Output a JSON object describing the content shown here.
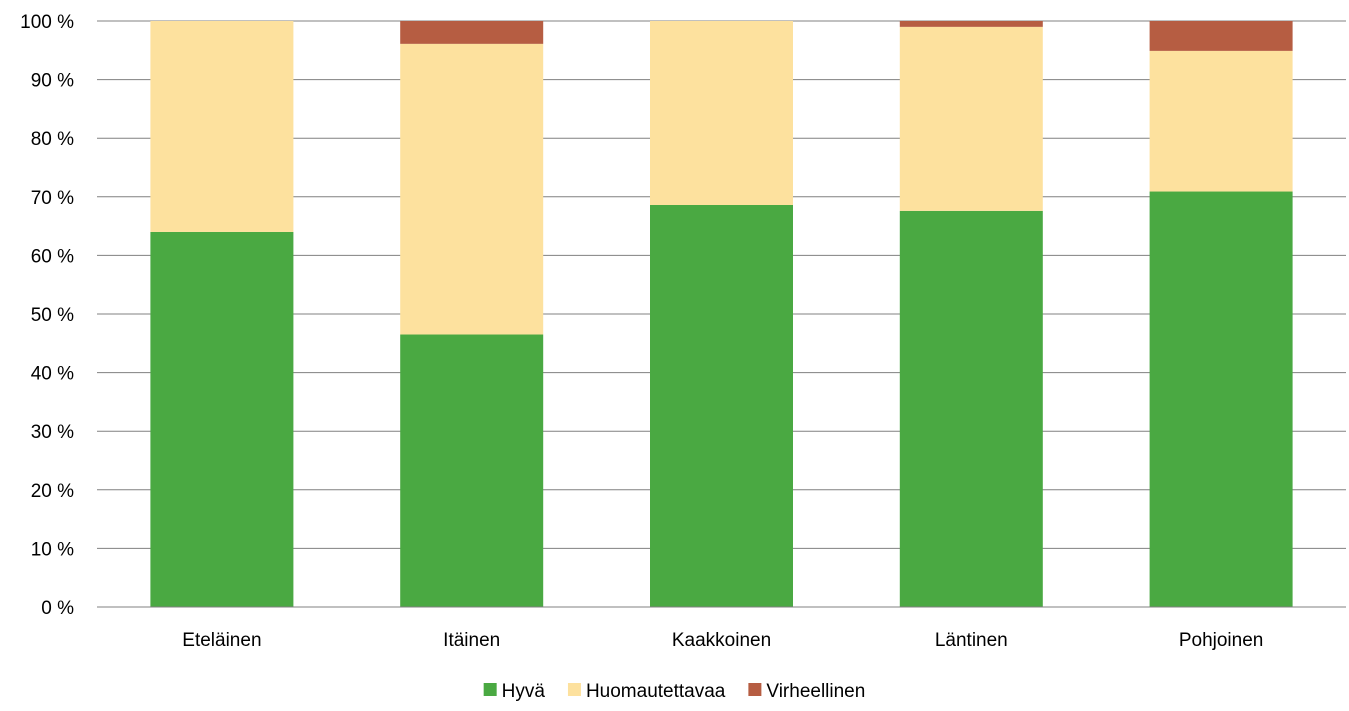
{
  "chart_data": {
    "type": "bar",
    "stacked": true,
    "percent_stacked": true,
    "title": "",
    "xlabel": "",
    "ylabel": "",
    "ylim": [
      0,
      100
    ],
    "yticks": [
      0,
      10,
      20,
      30,
      40,
      50,
      60,
      70,
      80,
      90,
      100
    ],
    "ytick_labels": [
      "0 %",
      "10 %",
      "20 %",
      "30 %",
      "40 %",
      "50 %",
      "60 %",
      "70 %",
      "80 %",
      "90 %",
      "100 %"
    ],
    "grid": true,
    "legend_position": "bottom",
    "categories": [
      "Eteläinen",
      "Itäinen",
      "Kaakkoinen",
      "Läntinen",
      "Pohjoinen"
    ],
    "series": [
      {
        "name": "Hyvä",
        "color": "#4aa942",
        "values": [
          64,
          46.5,
          68.6,
          67.6,
          70.9
        ]
      },
      {
        "name": "Huomautettavaa",
        "color": "#fde19e",
        "values": [
          36,
          49.6,
          31.4,
          31.4,
          24.0
        ]
      },
      {
        "name": "Virheellinen",
        "color": "#b65d42",
        "values": [
          0,
          3.9,
          0,
          1.0,
          5.1
        ]
      }
    ]
  }
}
